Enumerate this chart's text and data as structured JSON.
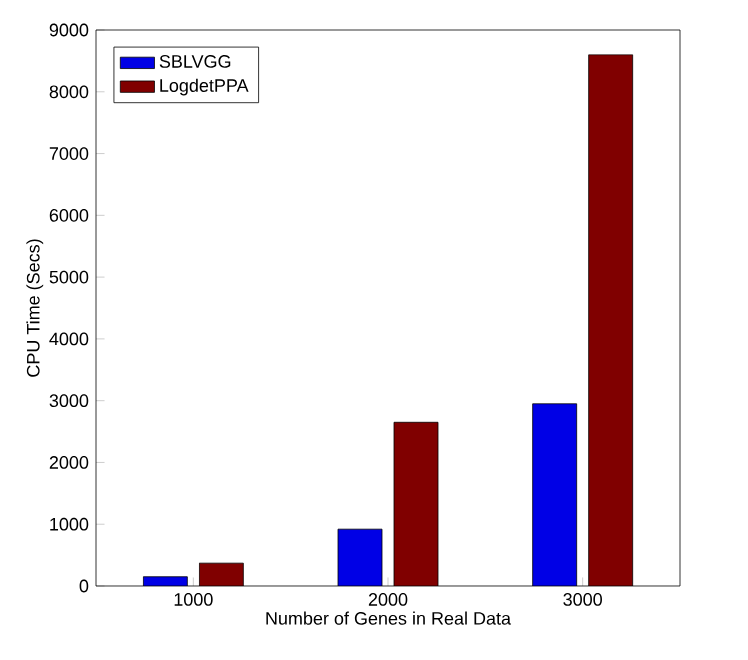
{
  "chart_data": {
    "type": "bar",
    "xlabel": "Number of Genes in Real Data",
    "ylabel": "CPU Time (Secs)",
    "categories": [
      "1000",
      "2000",
      "3000"
    ],
    "series": [
      {
        "name": "SBLVGG",
        "color": "#0000e6",
        "values": [
          150,
          920,
          2950
        ]
      },
      {
        "name": "LogdetPPA",
        "color": "#800000",
        "values": [
          370,
          2650,
          8600
        ]
      }
    ],
    "ylim": [
      0,
      9000
    ],
    "yticks": [
      0,
      1000,
      2000,
      3000,
      4000,
      5000,
      6000,
      7000,
      8000,
      9000
    ],
    "legend": "top left",
    "grid": false
  }
}
